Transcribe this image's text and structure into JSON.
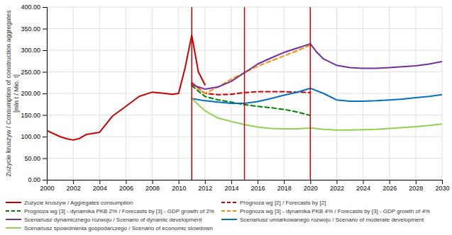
{
  "chart_data": {
    "type": "line",
    "ylabel": [
      "Zużycie kruszyw / Consumption of construction aggregates",
      "[mln t / Mio. t]"
    ],
    "xlim": [
      2000,
      2030
    ],
    "ylim": [
      0,
      400
    ],
    "xticks": [
      2000,
      2002,
      2004,
      2006,
      2008,
      2010,
      2012,
      2014,
      2016,
      2018,
      2020,
      2022,
      2024,
      2026,
      2028,
      2030
    ],
    "yticks": [
      {
        "value": 0,
        "label": "0.00"
      },
      {
        "value": 50,
        "label": "50.00"
      },
      {
        "value": 100,
        "label": "100.00"
      },
      {
        "value": 150,
        "label": "150.00"
      },
      {
        "value": 200,
        "label": "200.00"
      },
      {
        "value": 250,
        "label": "250.00"
      },
      {
        "value": 300,
        "label": "300.00"
      },
      {
        "value": 350,
        "label": "350.00"
      },
      {
        "value": 400,
        "label": "400.00"
      }
    ],
    "grid": true,
    "vlines": {
      "x": [
        2011,
        2015,
        2020
      ],
      "color": "#cc0000"
    },
    "series": [
      {
        "name": "Zużycie kruszyw / Aggregates consumption",
        "color": "#cc0000",
        "line_style": "solid",
        "x": [
          2000,
          2001,
          2001.5,
          2002,
          2002.5,
          2003,
          2004,
          2005,
          2006,
          2007,
          2008,
          2009,
          2009.5,
          2010,
          2010.5,
          2011,
          2011.5,
          2012
        ],
        "values": [
          114,
          100,
          95,
          92,
          96,
          105,
          110,
          148,
          170,
          193,
          203,
          200,
          198,
          200,
          260,
          335,
          250,
          220
        ]
      },
      {
        "name": "Prognoza wg [2] / Forecasts by [2]",
        "color": "#cc0000",
        "line_style": "dashed",
        "x": [
          2011,
          2012,
          2013,
          2014,
          2015,
          2016,
          2017,
          2018,
          2019,
          2020
        ],
        "values": [
          225,
          200,
          197,
          198,
          202,
          204,
          204,
          204,
          203,
          202
        ]
      },
      {
        "name": "Prognoza wg [3] - dynamika PKB 2% / Forecasts by [3] - GDP growth of 2%",
        "color": "#008000",
        "line_style": "dashed",
        "x": [
          2011,
          2012,
          2013,
          2014,
          2015,
          2016,
          2017,
          2018,
          2019,
          2020
        ],
        "values": [
          218,
          193,
          185,
          180,
          174,
          170,
          167,
          163,
          157,
          149
        ]
      },
      {
        "name": "Prognoza wg [3] - dynamika PKB 4% / Forecasts by [3] - GDP growth of 4%",
        "color": "#ff8c00",
        "line_style": "dashed",
        "x": [
          2011,
          2012,
          2013,
          2014,
          2015,
          2016,
          2017,
          2018,
          2019,
          2020
        ],
        "values": [
          222,
          200,
          215,
          233,
          248,
          263,
          275,
          287,
          299,
          312
        ]
      },
      {
        "name": "Scenariusz dynamicznego rozwoju / Scenario of dynamic development",
        "color": "#7030a0",
        "line_style": "solid",
        "x": [
          2011,
          2012,
          2013,
          2014,
          2015,
          2016,
          2017,
          2018,
          2019,
          2020,
          2020.5,
          2021,
          2022,
          2023,
          2024,
          2025,
          2026,
          2027,
          2028,
          2029,
          2030
        ],
        "values": [
          220,
          210,
          215,
          228,
          248,
          268,
          282,
          295,
          305,
          315,
          295,
          280,
          265,
          260,
          258,
          258,
          260,
          262,
          264,
          268,
          274
        ]
      },
      {
        "name": "Scenariusz umiarkowanego rozwoju / Scenario of moderate development",
        "color": "#0070c0",
        "line_style": "solid",
        "x": [
          2011,
          2012,
          2013,
          2014,
          2015,
          2016,
          2017,
          2018,
          2019,
          2020,
          2021,
          2022,
          2023,
          2024,
          2025,
          2026,
          2027,
          2028,
          2029,
          2030
        ],
        "values": [
          188,
          183,
          180,
          177,
          177,
          181,
          188,
          196,
          203,
          212,
          200,
          185,
          182,
          182,
          183,
          185,
          187,
          190,
          193,
          197
        ]
      },
      {
        "name": "Scenariusz spowolnienia gospodarczego / Scenario of economic slowdown",
        "color": "#92d050",
        "line_style": "solid",
        "x": [
          2011,
          2012,
          2013,
          2014,
          2015,
          2016,
          2017,
          2018,
          2019,
          2020,
          2021,
          2022,
          2023,
          2024,
          2025,
          2026,
          2027,
          2028,
          2029,
          2030
        ],
        "values": [
          188,
          160,
          143,
          135,
          128,
          122,
          119,
          118,
          118,
          120,
          117,
          115,
          115,
          116,
          117,
          119,
          121,
          123,
          126,
          129
        ]
      }
    ]
  }
}
